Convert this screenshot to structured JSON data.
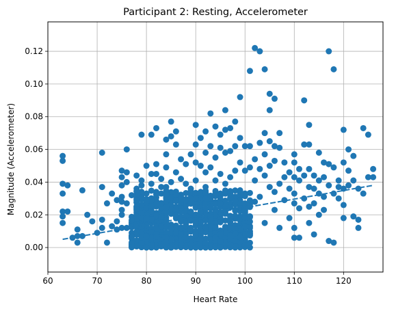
{
  "chart_data": {
    "type": "scatter",
    "title": "Participant 2: Resting, Accelerometer",
    "xlabel": "Heart Rate",
    "ylabel": "Magnitude (Accelerometer)",
    "xlim": [
      60,
      128
    ],
    "ylim": [
      -0.015,
      0.138
    ],
    "xticks": [
      60,
      70,
      80,
      90,
      100,
      110,
      120
    ],
    "yticks": [
      0.0,
      0.02,
      0.04,
      0.06,
      0.08,
      0.1,
      0.12
    ],
    "grid": true,
    "color": "#1f77b4",
    "trendline": {
      "x": [
        63,
        126
      ],
      "y": [
        0.005,
        0.038
      ]
    },
    "points": [
      [
        63,
        0.056
      ],
      [
        63,
        0.053
      ],
      [
        63,
        0.039
      ],
      [
        63,
        0.033
      ],
      [
        63,
        0.022
      ],
      [
        63,
        0.019
      ],
      [
        63,
        0.015
      ],
      [
        64,
        0.038
      ],
      [
        64,
        0.022
      ],
      [
        65,
        0.006
      ],
      [
        66,
        0.003
      ],
      [
        66,
        0.011
      ],
      [
        66,
        0.007
      ],
      [
        67,
        0.035
      ],
      [
        67,
        0.007
      ],
      [
        68,
        0.02
      ],
      [
        69,
        0.016
      ],
      [
        70,
        0.009
      ],
      [
        71,
        0.058
      ],
      [
        71,
        0.037
      ],
      [
        71,
        0.017
      ],
      [
        71,
        0.012
      ],
      [
        72,
        0.027
      ],
      [
        72,
        0.003
      ],
      [
        73,
        0.033
      ],
      [
        73,
        0.013
      ],
      [
        74,
        0.029
      ],
      [
        74,
        0.016
      ],
      [
        74,
        0.011
      ],
      [
        75,
        0.047
      ],
      [
        75,
        0.043
      ],
      [
        75,
        0.038
      ],
      [
        75,
        0.031
      ],
      [
        75,
        0.028
      ],
      [
        75,
        0.023
      ],
      [
        75,
        0.02
      ],
      [
        75,
        0.012
      ],
      [
        76,
        0.06
      ],
      [
        76,
        0.046
      ],
      [
        76,
        0.04
      ],
      [
        76,
        0.027
      ],
      [
        76,
        0.012
      ],
      [
        77,
        0.032
      ],
      [
        77,
        0.014
      ],
      [
        78,
        0.036
      ],
      [
        78,
        0.03
      ],
      [
        78,
        0.044
      ],
      [
        79,
        0.069
      ],
      [
        79,
        0.038
      ],
      [
        79,
        0.041
      ],
      [
        79,
        0.016
      ],
      [
        79,
        0.01
      ],
      [
        80,
        0.05
      ],
      [
        80,
        0.033
      ],
      [
        80,
        0.025
      ],
      [
        80,
        0.018
      ],
      [
        80,
        0.008
      ],
      [
        81,
        0.069
      ],
      [
        81,
        0.045
      ],
      [
        81,
        0.039
      ],
      [
        81,
        0.021
      ],
      [
        82,
        0.073
      ],
      [
        82,
        0.051
      ],
      [
        82,
        0.045
      ],
      [
        82,
        0.034
      ],
      [
        82,
        0.012
      ],
      [
        83,
        0.042
      ],
      [
        83,
        0.037
      ],
      [
        83,
        0.02
      ],
      [
        83,
        0.011
      ],
      [
        84,
        0.066
      ],
      [
        84,
        0.057
      ],
      [
        84,
        0.049
      ],
      [
        84,
        0.037
      ],
      [
        84,
        0.025
      ],
      [
        84,
        0.015
      ],
      [
        85,
        0.077
      ],
      [
        85,
        0.068
      ],
      [
        85,
        0.04
      ],
      [
        85,
        0.028
      ],
      [
        86,
        0.071
      ],
      [
        86,
        0.063
      ],
      [
        86,
        0.046
      ],
      [
        86,
        0.022
      ],
      [
        87,
        0.054
      ],
      [
        87,
        0.042
      ],
      [
        87,
        0.031
      ],
      [
        87,
        0.017
      ],
      [
        88,
        0.051
      ],
      [
        88,
        0.039
      ],
      [
        88,
        0.027
      ],
      [
        88,
        0.023
      ],
      [
        89,
        0.057
      ],
      [
        89,
        0.036
      ],
      [
        89,
        0.029
      ],
      [
        89,
        0.012
      ],
      [
        90,
        0.075
      ],
      [
        90,
        0.063
      ],
      [
        90,
        0.052
      ],
      [
        90,
        0.041
      ],
      [
        90,
        0.025
      ],
      [
        90,
        0.018
      ],
      [
        91,
        0.067
      ],
      [
        91,
        0.05
      ],
      [
        91,
        0.034
      ],
      [
        91,
        0.013
      ],
      [
        92,
        0.071
      ],
      [
        92,
        0.058
      ],
      [
        92,
        0.046
      ],
      [
        92,
        0.037
      ],
      [
        92,
        0.021
      ],
      [
        93,
        0.082
      ],
      [
        93,
        0.062
      ],
      [
        93,
        0.049
      ],
      [
        93,
        0.028
      ],
      [
        94,
        0.074
      ],
      [
        94,
        0.055
      ],
      [
        94,
        0.041
      ],
      [
        94,
        0.016
      ],
      [
        95,
        0.069
      ],
      [
        95,
        0.061
      ],
      [
        95,
        0.045
      ],
      [
        95,
        0.033
      ],
      [
        96,
        0.084
      ],
      [
        96,
        0.072
      ],
      [
        96,
        0.058
      ],
      [
        96,
        0.039
      ],
      [
        96,
        0.022
      ],
      [
        97,
        0.073
      ],
      [
        97,
        0.059
      ],
      [
        97,
        0.043
      ],
      [
        97,
        0.026
      ],
      [
        98,
        0.077
      ],
      [
        98,
        0.062
      ],
      [
        98,
        0.047
      ],
      [
        98,
        0.03
      ],
      [
        99,
        0.092
      ],
      [
        99,
        0.067
      ],
      [
        99,
        0.052
      ],
      [
        99,
        0.035
      ],
      [
        99,
        0.019
      ],
      [
        100,
        0.062
      ],
      [
        100,
        0.047
      ],
      [
        100,
        0.032
      ],
      [
        100,
        0.017
      ],
      [
        101,
        0.108
      ],
      [
        101,
        0.062
      ],
      [
        101,
        0.049
      ],
      [
        101,
        0.012
      ],
      [
        102,
        0.122
      ],
      [
        102,
        0.054
      ],
      [
        102,
        0.041
      ],
      [
        102,
        0.028
      ],
      [
        103,
        0.12
      ],
      [
        103,
        0.064
      ],
      [
        103,
        0.048
      ],
      [
        103,
        0.031
      ],
      [
        104,
        0.109
      ],
      [
        104,
        0.07
      ],
      [
        104,
        0.057
      ],
      [
        104,
        0.044
      ],
      [
        104,
        0.015
      ],
      [
        105,
        0.094
      ],
      [
        105,
        0.084
      ],
      [
        105,
        0.065
      ],
      [
        105,
        0.05
      ],
      [
        105,
        0.037
      ],
      [
        106,
        0.091
      ],
      [
        106,
        0.062
      ],
      [
        106,
        0.053
      ],
      [
        106,
        0.034
      ],
      [
        106,
        0.023
      ],
      [
        107,
        0.07
      ],
      [
        107,
        0.061
      ],
      [
        107,
        0.039
      ],
      [
        107,
        0.012
      ],
      [
        108,
        0.052
      ],
      [
        108,
        0.043
      ],
      [
        108,
        0.029
      ],
      [
        109,
        0.046
      ],
      [
        109,
        0.036
      ],
      [
        109,
        0.018
      ],
      [
        110,
        0.057
      ],
      [
        110,
        0.052
      ],
      [
        110,
        0.043
      ],
      [
        110,
        0.033
      ],
      [
        110,
        0.027
      ],
      [
        110,
        0.012
      ],
      [
        110,
        0.006
      ],
      [
        111,
        0.048
      ],
      [
        111,
        0.041
      ],
      [
        111,
        0.024
      ],
      [
        111,
        0.006
      ],
      [
        112,
        0.09
      ],
      [
        112,
        0.063
      ],
      [
        112,
        0.044
      ],
      [
        112,
        0.03
      ],
      [
        113,
        0.075
      ],
      [
        113,
        0.063
      ],
      [
        113,
        0.048
      ],
      [
        113,
        0.037
      ],
      [
        113,
        0.025
      ],
      [
        113,
        0.015
      ],
      [
        114,
        0.044
      ],
      [
        114,
        0.036
      ],
      [
        114,
        0.027
      ],
      [
        114,
        0.008
      ],
      [
        115,
        0.058
      ],
      [
        115,
        0.041
      ],
      [
        115,
        0.033
      ],
      [
        115,
        0.02
      ],
      [
        116,
        0.052
      ],
      [
        116,
        0.043
      ],
      [
        116,
        0.031
      ],
      [
        116,
        0.023
      ],
      [
        117,
        0.12
      ],
      [
        117,
        0.051
      ],
      [
        117,
        0.038
      ],
      [
        117,
        0.004
      ],
      [
        118,
        0.109
      ],
      [
        118,
        0.049
      ],
      [
        118,
        0.033
      ],
      [
        118,
        0.003
      ],
      [
        119,
        0.041
      ],
      [
        119,
        0.037
      ],
      [
        119,
        0.03
      ],
      [
        120,
        0.072
      ],
      [
        120,
        0.052
      ],
      [
        120,
        0.036
      ],
      [
        120,
        0.026
      ],
      [
        120,
        0.018
      ],
      [
        121,
        0.06
      ],
      [
        121,
        0.047
      ],
      [
        121,
        0.038
      ],
      [
        122,
        0.056
      ],
      [
        122,
        0.041
      ],
      [
        122,
        0.019
      ],
      [
        123,
        0.036
      ],
      [
        123,
        0.017
      ],
      [
        123,
        0.012
      ],
      [
        124,
        0.073
      ],
      [
        124,
        0.033
      ],
      [
        125,
        0.069
      ],
      [
        125,
        0.043
      ],
      [
        126,
        0.048
      ],
      [
        126,
        0.043
      ]
    ],
    "dense_cluster": {
      "x_range": [
        77,
        101
      ],
      "y_range": [
        0.0,
        0.035
      ]
    }
  }
}
